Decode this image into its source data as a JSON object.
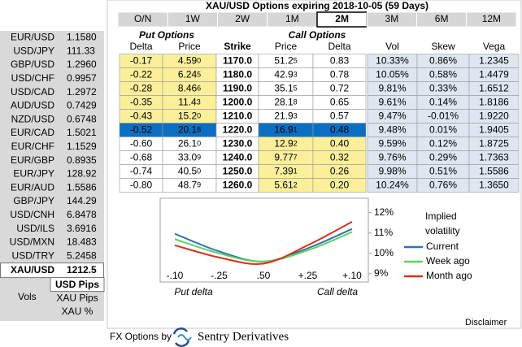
{
  "rates": [
    {
      "pair": "EUR/USD",
      "rate": "1.1580",
      "color": "#e00000"
    },
    {
      "pair": "USD/JPY",
      "rate": "111.33",
      "color": "#000000"
    },
    {
      "pair": "GBP/USD",
      "rate": "1.2960",
      "color": "#000000"
    },
    {
      "pair": "USD/CHF",
      "rate": "0.9957",
      "color": "#0a8a0a"
    },
    {
      "pair": "USD/CAD",
      "rate": "1.2972",
      "color": "#000000"
    },
    {
      "pair": "AUD/USD",
      "rate": "0.7429",
      "color": "#000000"
    },
    {
      "pair": "NZD/USD",
      "rate": "0.6748",
      "color": "#000000"
    },
    {
      "pair": "EUR/CAD",
      "rate": "1.5021",
      "color": "#e00000"
    },
    {
      "pair": "EUR/CHF",
      "rate": "1.1529",
      "color": "#e00000"
    },
    {
      "pair": "EUR/GBP",
      "rate": "0.8935",
      "color": "#000000"
    },
    {
      "pair": "EUR/JPY",
      "rate": "128.92",
      "color": "#000000"
    },
    {
      "pair": "EUR/AUD",
      "rate": "1.5586",
      "color": "#e00000"
    },
    {
      "pair": "GBP/JPY",
      "rate": "144.29",
      "color": "#000000"
    },
    {
      "pair": "USD/CNH",
      "rate": "6.8478",
      "color": "#0a8a0a"
    },
    {
      "pair": "USD/ILS",
      "rate": "3.6916",
      "color": "#000000"
    },
    {
      "pair": "USD/MXN",
      "rate": "18.483",
      "color": "#0a8a0a"
    },
    {
      "pair": "USD/TRY",
      "rate": "5.2458",
      "color": "#e00000"
    }
  ],
  "selected_rate": {
    "pair": "XAU/USD",
    "rate": "1212.5"
  },
  "quote_modes": {
    "label": "Vols",
    "options": [
      "USD Pips",
      "XAU Pips",
      "XAU %"
    ],
    "active": "USD Pips"
  },
  "title": "XAU/USD Options expiring 2018-10-05 (59 Days)",
  "tabs": [
    "O/N",
    "1W",
    "2W",
    "1M",
    "2M",
    "3M",
    "6M",
    "12M"
  ],
  "active_tab": "2M",
  "table": {
    "group_headers": {
      "put": "Put Options",
      "call": "Call Options"
    },
    "columns": [
      "Delta",
      "Price",
      "Strike",
      "Price",
      "Delta",
      "Vol",
      "Skew",
      "Vega"
    ],
    "rows": [
      {
        "put_delta": "-0.17",
        "put_price": [
          "4.59",
          "0"
        ],
        "strike": "1170.0",
        "call_price": [
          "51.2",
          "5"
        ],
        "call_delta": "0.83",
        "vol": "10.33%",
        "skew": "0.86%",
        "vega": "1.2345",
        "highlight": "put"
      },
      {
        "put_delta": "-0.22",
        "put_price": [
          "6.24",
          "5"
        ],
        "strike": "1180.0",
        "call_price": [
          "42.9",
          "3"
        ],
        "call_delta": "0.78",
        "vol": "10.05%",
        "skew": "0.58%",
        "vega": "1.4479",
        "highlight": "put"
      },
      {
        "put_delta": "-0.28",
        "put_price": [
          "8.46",
          "6"
        ],
        "strike": "1190.0",
        "call_price": [
          "35.1",
          "5"
        ],
        "call_delta": "0.72",
        "vol": "9.81%",
        "skew": "0.33%",
        "vega": "1.6512",
        "highlight": "put"
      },
      {
        "put_delta": "-0.35",
        "put_price": [
          "11.4",
          "3"
        ],
        "strike": "1200.0",
        "call_price": [
          "28.1",
          "8"
        ],
        "call_delta": "0.65",
        "vol": "9.61%",
        "skew": "0.14%",
        "vega": "1.8186",
        "highlight": "put"
      },
      {
        "put_delta": "-0.43",
        "put_price": [
          "15.2",
          "0"
        ],
        "strike": "1210.0",
        "call_price": [
          "21.9",
          "3"
        ],
        "call_delta": "0.57",
        "vol": "9.47%",
        "skew": "-0.01%",
        "vega": "1.9220",
        "highlight": "put"
      },
      {
        "put_delta": "-0.52",
        "put_price": [
          "20.1",
          "8"
        ],
        "strike": "1220.0",
        "call_price": [
          "16.9",
          "1"
        ],
        "call_delta": "0.48",
        "vol": "9.48%",
        "skew": "0.01%",
        "vega": "1.9405",
        "highlight": "atm"
      },
      {
        "put_delta": "-0.60",
        "put_price": [
          "26.1",
          "0"
        ],
        "strike": "1230.0",
        "call_price": [
          "12.9",
          "2"
        ],
        "call_delta": "0.40",
        "vol": "9.59%",
        "skew": "0.12%",
        "vega": "1.8725",
        "highlight": "call"
      },
      {
        "put_delta": "-0.68",
        "put_price": [
          "33.0",
          "9"
        ],
        "strike": "1240.0",
        "call_price": [
          "9.77",
          "7"
        ],
        "call_delta": "0.32",
        "vol": "9.76%",
        "skew": "0.29%",
        "vega": "1.7363",
        "highlight": "call"
      },
      {
        "put_delta": "-0.74",
        "put_price": [
          "40.5",
          "0"
        ],
        "strike": "1250.0",
        "call_price": [
          "7.39",
          "1"
        ],
        "call_delta": "0.26",
        "vol": "9.98%",
        "skew": "0.51%",
        "vega": "1.5586",
        "highlight": "call"
      },
      {
        "put_delta": "-0.80",
        "put_price": [
          "48.7",
          "9"
        ],
        "strike": "1260.0",
        "call_price": [
          "5.61",
          "2"
        ],
        "call_delta": "0.20",
        "vol": "10.24%",
        "skew": "0.76%",
        "vega": "1.3650",
        "highlight": "call"
      }
    ]
  },
  "smile_chart": {
    "type": "line",
    "categories": [
      "-.10",
      "-.25",
      ".50",
      "+.25",
      "+.10"
    ],
    "put_label": "Put delta",
    "call_label": "Call delta",
    "legend_title": [
      "Implied",
      "volatility"
    ],
    "ylim": [
      8.6,
      12.7
    ],
    "yticks": [
      {
        "value": 12,
        "label": "12%"
      },
      {
        "value": 11,
        "label": "11%"
      },
      {
        "value": 10,
        "label": "10%"
      },
      {
        "value": 9,
        "label": "9%"
      }
    ],
    "series": [
      {
        "name": "Current",
        "color": "#2e75b6",
        "values": [
          10.96,
          10.1,
          9.6,
          10.25,
          11.2
        ]
      },
      {
        "name": "Week ago",
        "color": "#5fd35f",
        "values": [
          10.7,
          10.0,
          9.6,
          10.15,
          11.05
        ]
      },
      {
        "name": "Month ago",
        "color": "#d9301c",
        "values": [
          10.4,
          9.8,
          9.5,
          10.4,
          11.55
        ]
      }
    ]
  },
  "footer": {
    "prefix": "FX Options by",
    "brand": "Sentry Derivatives",
    "link": "Disclaimer"
  }
}
